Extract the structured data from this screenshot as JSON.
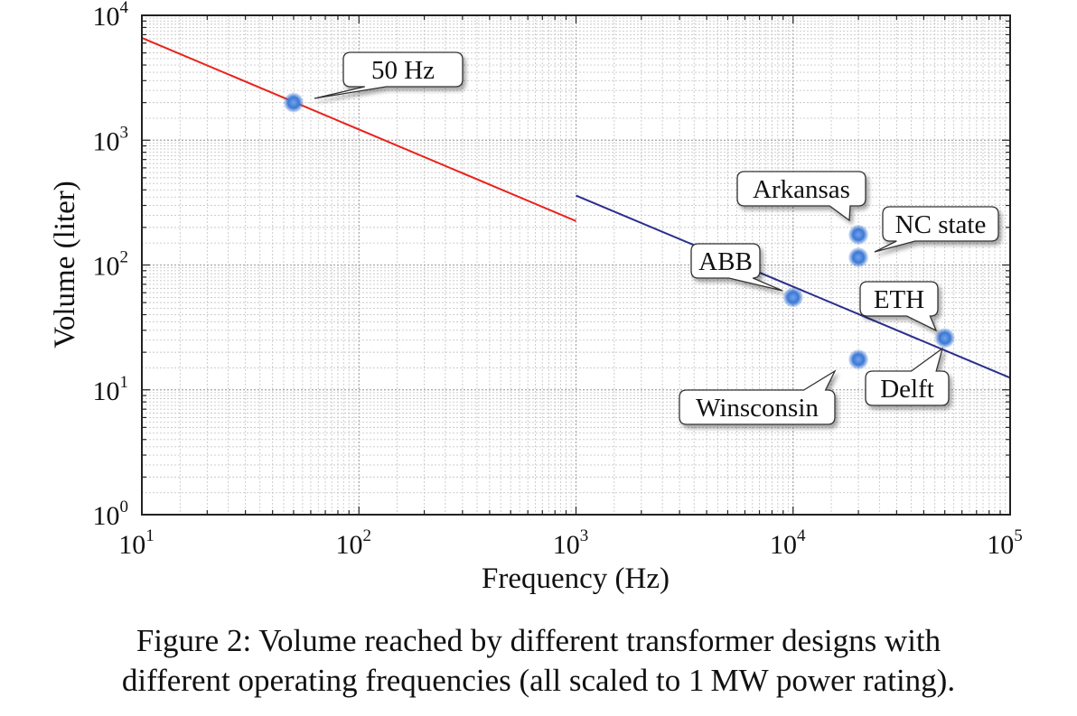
{
  "chart_data": {
    "type": "scatter",
    "xscale": "log",
    "yscale": "log",
    "xlim": [
      10,
      100000
    ],
    "ylim": [
      1,
      10000
    ],
    "grid": true,
    "legend": "none",
    "xlabel": "Frequency (Hz)",
    "ylabel": "Volume (liter)",
    "x_ticks": [
      {
        "base": "10",
        "exp": "1"
      },
      {
        "base": "10",
        "exp": "2"
      },
      {
        "base": "10",
        "exp": "3"
      },
      {
        "base": "10",
        "exp": "4"
      },
      {
        "base": "10",
        "exp": "5"
      }
    ],
    "y_ticks": [
      {
        "base": "10",
        "exp": "0"
      },
      {
        "base": "10",
        "exp": "1"
      },
      {
        "base": "10",
        "exp": "2"
      },
      {
        "base": "10",
        "exp": "3"
      },
      {
        "base": "10",
        "exp": "4"
      }
    ],
    "lines": [
      {
        "color": "#e8231c",
        "points": [
          [
            10,
            6600
          ],
          [
            1000,
            225
          ]
        ]
      },
      {
        "color": "#2b2f8c",
        "points": [
          [
            1000,
            360
          ],
          [
            100000,
            12.5
          ]
        ]
      }
    ],
    "points": [
      {
        "label": "50 Hz",
        "x": 50,
        "y": 2000
      },
      {
        "label": "Arkansas",
        "x": 20000,
        "y": 175
      },
      {
        "label": "NC state",
        "x": 20000,
        "y": 115
      },
      {
        "label": "ABB",
        "x": 10000,
        "y": 55
      },
      {
        "label": "ETH",
        "x": 50000,
        "y": 26
      },
      {
        "label": "Delft",
        "x": 50000,
        "y": 26
      },
      {
        "label": "Winsconsin",
        "x": 20000,
        "y": 17.5
      }
    ],
    "point_color": "#3d78d4"
  },
  "caption": {
    "line1": "Figure 2: Volume reached by different transformer designs with",
    "line2": "different operating frequencies (all scaled to 1 MW power rating)."
  }
}
